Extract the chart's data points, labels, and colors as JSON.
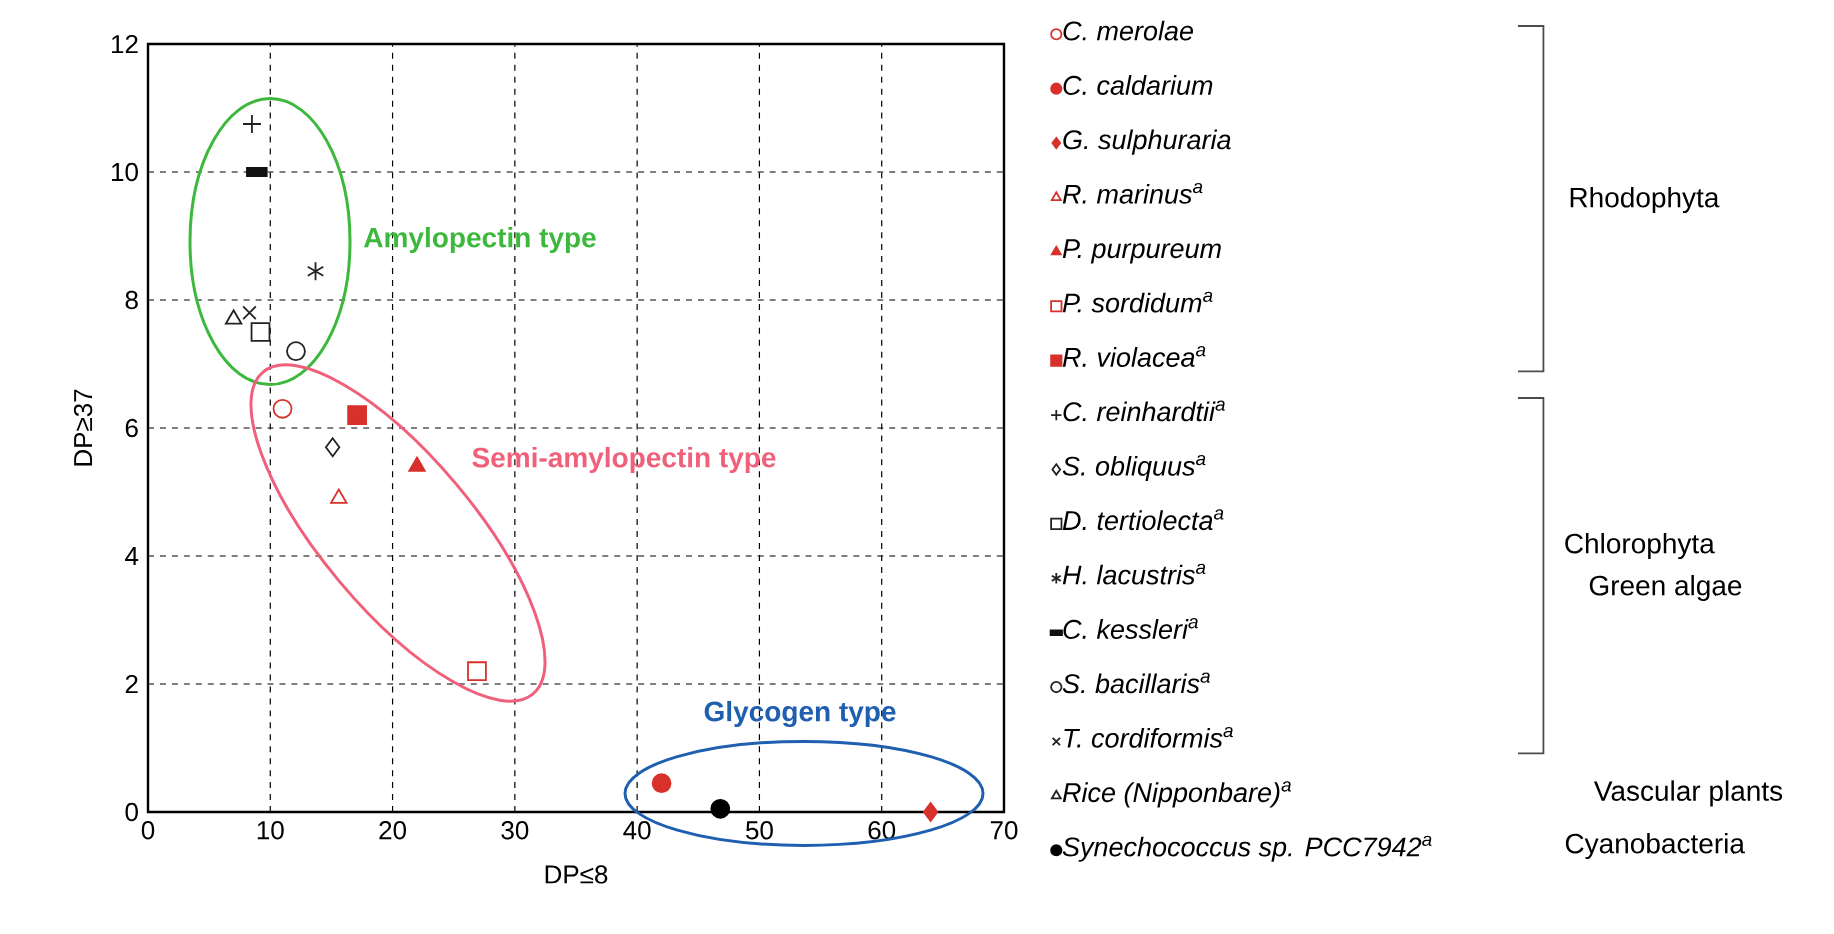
{
  "chart_data": {
    "type": "scatter",
    "xlabel": "DP≤8",
    "ylabel": "DP≥37",
    "xlim": [
      0,
      70
    ],
    "ylim": [
      0,
      12
    ],
    "xticks": [
      0,
      10,
      20,
      30,
      40,
      50,
      60,
      70
    ],
    "yticks": [
      0,
      2,
      4,
      6,
      8,
      10,
      12
    ],
    "grid": true,
    "legend": "right",
    "series": [
      {
        "name": "C. merolae",
        "color": "#d8302a",
        "marker": "circle",
        "x": [
          11.0
        ],
        "values": [
          6.3
        ]
      },
      {
        "name": "C. caldarium",
        "color": "#d8302a",
        "marker": "circle_filled",
        "x": [
          42.0
        ],
        "values": [
          0.45
        ]
      },
      {
        "name": "G. sulphuraria",
        "color": "#d8302a",
        "marker": "diamond_filled",
        "x": [
          64.0
        ],
        "values": [
          0.0
        ]
      },
      {
        "name": "R. marinus$^{a}$",
        "color": "#d8302a",
        "marker": "triangle",
        "x": [
          15.6
        ],
        "values": [
          4.9
        ]
      },
      {
        "name": "P. purpureum",
        "color": "#d8302a",
        "marker": "triangle_filled",
        "x": [
          22.0
        ],
        "values": [
          5.4
        ]
      },
      {
        "name": "P. sordidum$^{a}$",
        "color": "#d8302a",
        "marker": "square",
        "x": [
          26.9
        ],
        "values": [
          2.2
        ]
      },
      {
        "name": "R. violacea$^{a}$",
        "color": "#d8302a",
        "marker": "square_filled",
        "x": [
          17.1
        ],
        "values": [
          6.2
        ]
      },
      {
        "name": "C. reinhardtii$^{a}$",
        "color": "#222222",
        "marker": "cross",
        "x": [
          8.5
        ],
        "values": [
          10.75
        ]
      },
      {
        "name": "S. obliquus$^{a}$",
        "color": "#222222",
        "marker": "diamond",
        "x": [
          15.1
        ],
        "values": [
          5.7
        ]
      },
      {
        "name": "D. tertiolecta$^{a}$",
        "color": "#222222",
        "marker": "square",
        "x": [
          9.2
        ],
        "values": [
          7.5
        ]
      },
      {
        "name": "H. lacustris$^{a}$",
        "color": "#222222",
        "marker": "cross",
        "x": [
          13.7
        ],
        "values": [
          8.45
        ]
      },
      {
        "name": "C. kessleri$^{a}$",
        "color": "#111111",
        "marker": "square_filled",
        "x": [
          8.9
        ],
        "values": [
          10.0
        ]
      },
      {
        "name": "S. bacillaris$^{a}$",
        "color": "#222222",
        "marker": "circle",
        "x": [
          12.1
        ],
        "values": [
          7.2
        ]
      },
      {
        "name": "T. cordiformis$^{a}$",
        "color": "#222222",
        "marker": "cross",
        "x": [
          8.3
        ],
        "values": [
          7.8
        ]
      },
      {
        "name": "Rice (Nipponbare)$^{a}$",
        "color": "#222222",
        "marker": "triangle",
        "x": [
          7.0
        ],
        "values": [
          7.7
        ]
      },
      {
        "name": "Synechococcus sp. PCC7942$^{a}$",
        "color": "#000000",
        "marker": "circle_filled",
        "x": [
          46.8
        ],
        "values": [
          0.05
        ]
      }
    ],
    "annotations": [
      "Amylopectin type",
      "Semi-amylopectin type",
      "Glycogen type",
      "Rhodophyta",
      "Chlorophyta",
      "Green algae",
      "Vascular plants",
      "Cyanobacteria"
    ]
  }
}
